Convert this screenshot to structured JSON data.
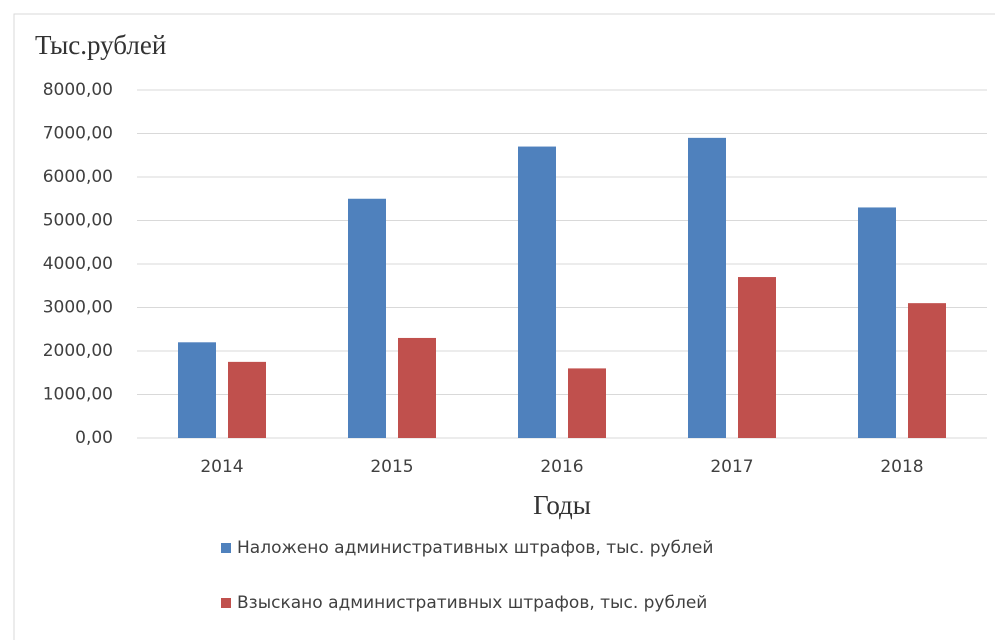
{
  "chart_data": {
    "type": "bar",
    "y_axis_label": "Тыс.рублей",
    "x_axis_label": "Годы",
    "categories": [
      "2014",
      "2015",
      "2016",
      "2017",
      "2018"
    ],
    "series": [
      {
        "name": "Наложено административных штрафов, тыс. рублей",
        "color": "#4f81bd",
        "values": [
          2200,
          5500,
          6700,
          6900,
          5300
        ]
      },
      {
        "name": "Взыскано административных штрафов, тыс. рублей",
        "color": "#c0504d",
        "values": [
          1750,
          2300,
          1600,
          3700,
          3100
        ]
      }
    ],
    "ylim": [
      0,
      8000
    ],
    "yticks": [
      {
        "value": 0,
        "label": "0,00"
      },
      {
        "value": 1000,
        "label": "1000,00"
      },
      {
        "value": 2000,
        "label": "2000,00"
      },
      {
        "value": 3000,
        "label": "3000,00"
      },
      {
        "value": 4000,
        "label": "4000,00"
      },
      {
        "value": 5000,
        "label": "5000,00"
      },
      {
        "value": 6000,
        "label": "6000,00"
      },
      {
        "value": 7000,
        "label": "7000,00"
      },
      {
        "value": 8000,
        "label": "8000,00"
      }
    ],
    "grid": true
  }
}
